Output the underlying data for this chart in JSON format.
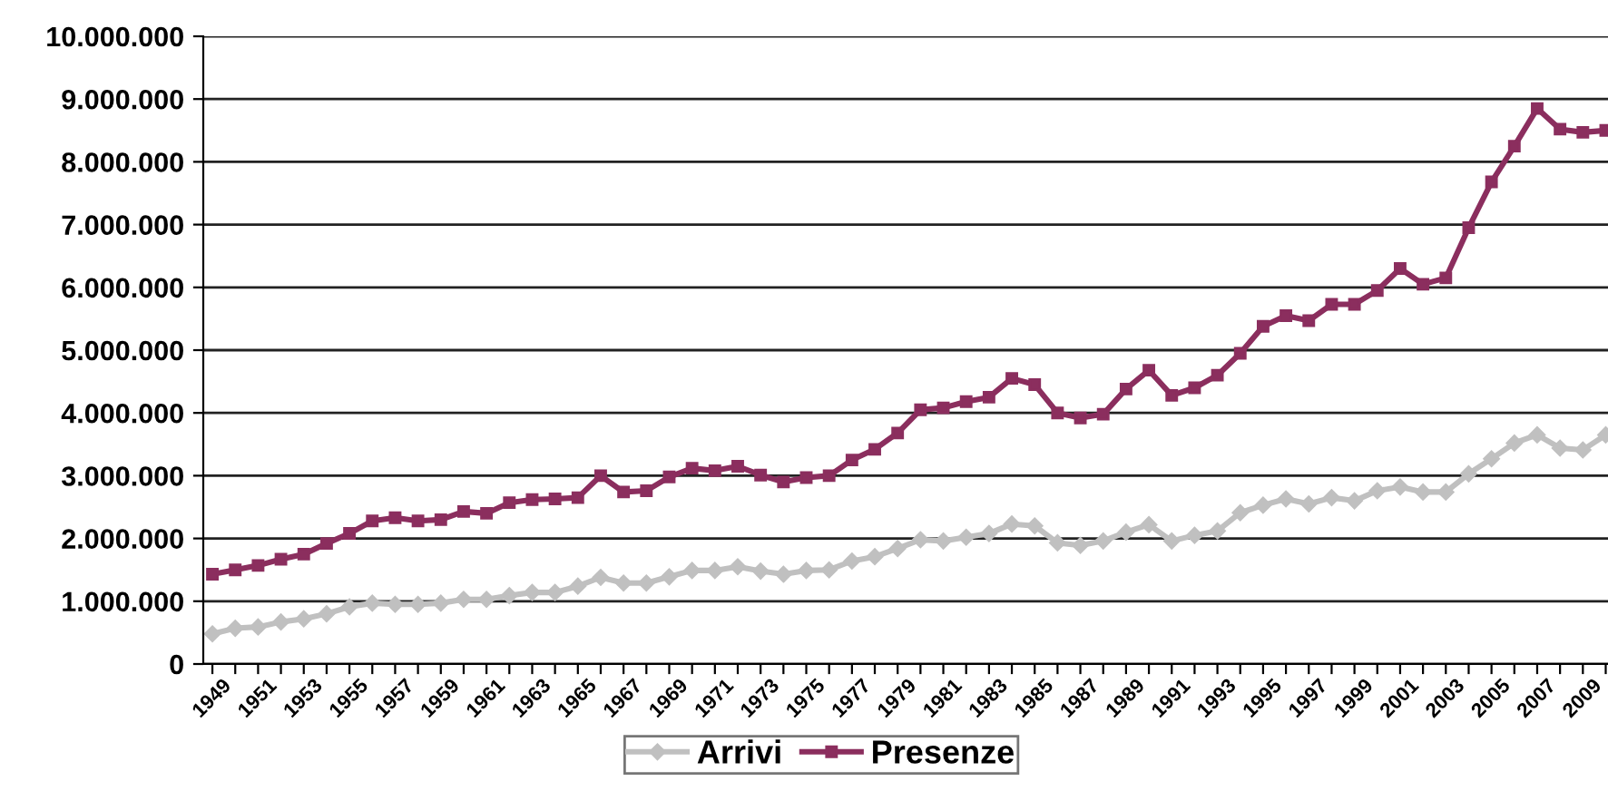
{
  "chart_data": {
    "type": "line",
    "categories": [
      "1949",
      null,
      "1951",
      null,
      "1953",
      null,
      "1955",
      null,
      "1957",
      null,
      "1959",
      null,
      "1961",
      null,
      "1963",
      null,
      "1965",
      null,
      "1967",
      null,
      "1969",
      null,
      "1971",
      null,
      "1973",
      null,
      "1975",
      null,
      "1977",
      null,
      "1979",
      null,
      "1981",
      null,
      "1983",
      null,
      "1985",
      null,
      "1987",
      null,
      "1989",
      null,
      "1991",
      null,
      "1993",
      null,
      "1995",
      null,
      "1997",
      null,
      "1999",
      null,
      "2001",
      null,
      "2003",
      null,
      "2005",
      null,
      "2007",
      null,
      "2009",
      null
    ],
    "series": [
      {
        "name": "Arrivi",
        "color": "#c0c0c0",
        "marker": "diamond",
        "values": [
          480000,
          570000,
          590000,
          670000,
          720000,
          800000,
          910000,
          970000,
          950000,
          950000,
          970000,
          1030000,
          1030000,
          1090000,
          1140000,
          1140000,
          1240000,
          1380000,
          1290000,
          1290000,
          1390000,
          1490000,
          1490000,
          1550000,
          1480000,
          1430000,
          1490000,
          1500000,
          1640000,
          1710000,
          1840000,
          1980000,
          1960000,
          2020000,
          2080000,
          2230000,
          2200000,
          1930000,
          1890000,
          1960000,
          2100000,
          2220000,
          1960000,
          2050000,
          2120000,
          2410000,
          2530000,
          2630000,
          2550000,
          2650000,
          2600000,
          2760000,
          2820000,
          2740000,
          2740000,
          3030000,
          3270000,
          3520000,
          3650000,
          3440000,
          3410000,
          3650000
        ]
      },
      {
        "name": "Presenze",
        "color": "#8b2e5e",
        "marker": "square",
        "values": [
          1430000,
          1500000,
          1570000,
          1670000,
          1750000,
          1920000,
          2080000,
          2280000,
          2330000,
          2280000,
          2300000,
          2430000,
          2400000,
          2570000,
          2620000,
          2630000,
          2650000,
          3000000,
          2740000,
          2760000,
          2980000,
          3120000,
          3080000,
          3150000,
          3010000,
          2900000,
          2970000,
          3000000,
          3250000,
          3420000,
          3680000,
          4050000,
          4080000,
          4180000,
          4250000,
          4550000,
          4450000,
          4000000,
          3920000,
          3980000,
          4380000,
          4680000,
          4280000,
          4400000,
          4600000,
          4950000,
          5380000,
          5550000,
          5470000,
          5730000,
          5730000,
          5950000,
          6300000,
          6050000,
          6150000,
          6950000,
          7680000,
          8250000,
          8850000,
          8520000,
          8470000,
          8500000
        ]
      }
    ],
    "ylim": [
      0,
      10000000
    ],
    "yticks": [
      0,
      {
        "value": 1000000,
        "label": "1.000.000"
      },
      {
        "value": 2000000,
        "label": "2.000.000"
      },
      {
        "value": 3000000,
        "label": "3.000.000"
      },
      {
        "value": 4000000,
        "label": "4.000.000"
      },
      {
        "value": 5000000,
        "label": "5.000.000"
      },
      {
        "value": 6000000,
        "label": "6.000.000"
      },
      {
        "value": 7000000,
        "label": "7.000.000"
      },
      {
        "value": 8000000,
        "label": "8.000.000"
      },
      {
        "value": 9000000,
        "label": "9.000.000"
      },
      {
        "value": 10000000,
        "label": "10.000.000"
      }
    ],
    "grid": "y",
    "legend": "bottom",
    "line_style": "solid"
  }
}
